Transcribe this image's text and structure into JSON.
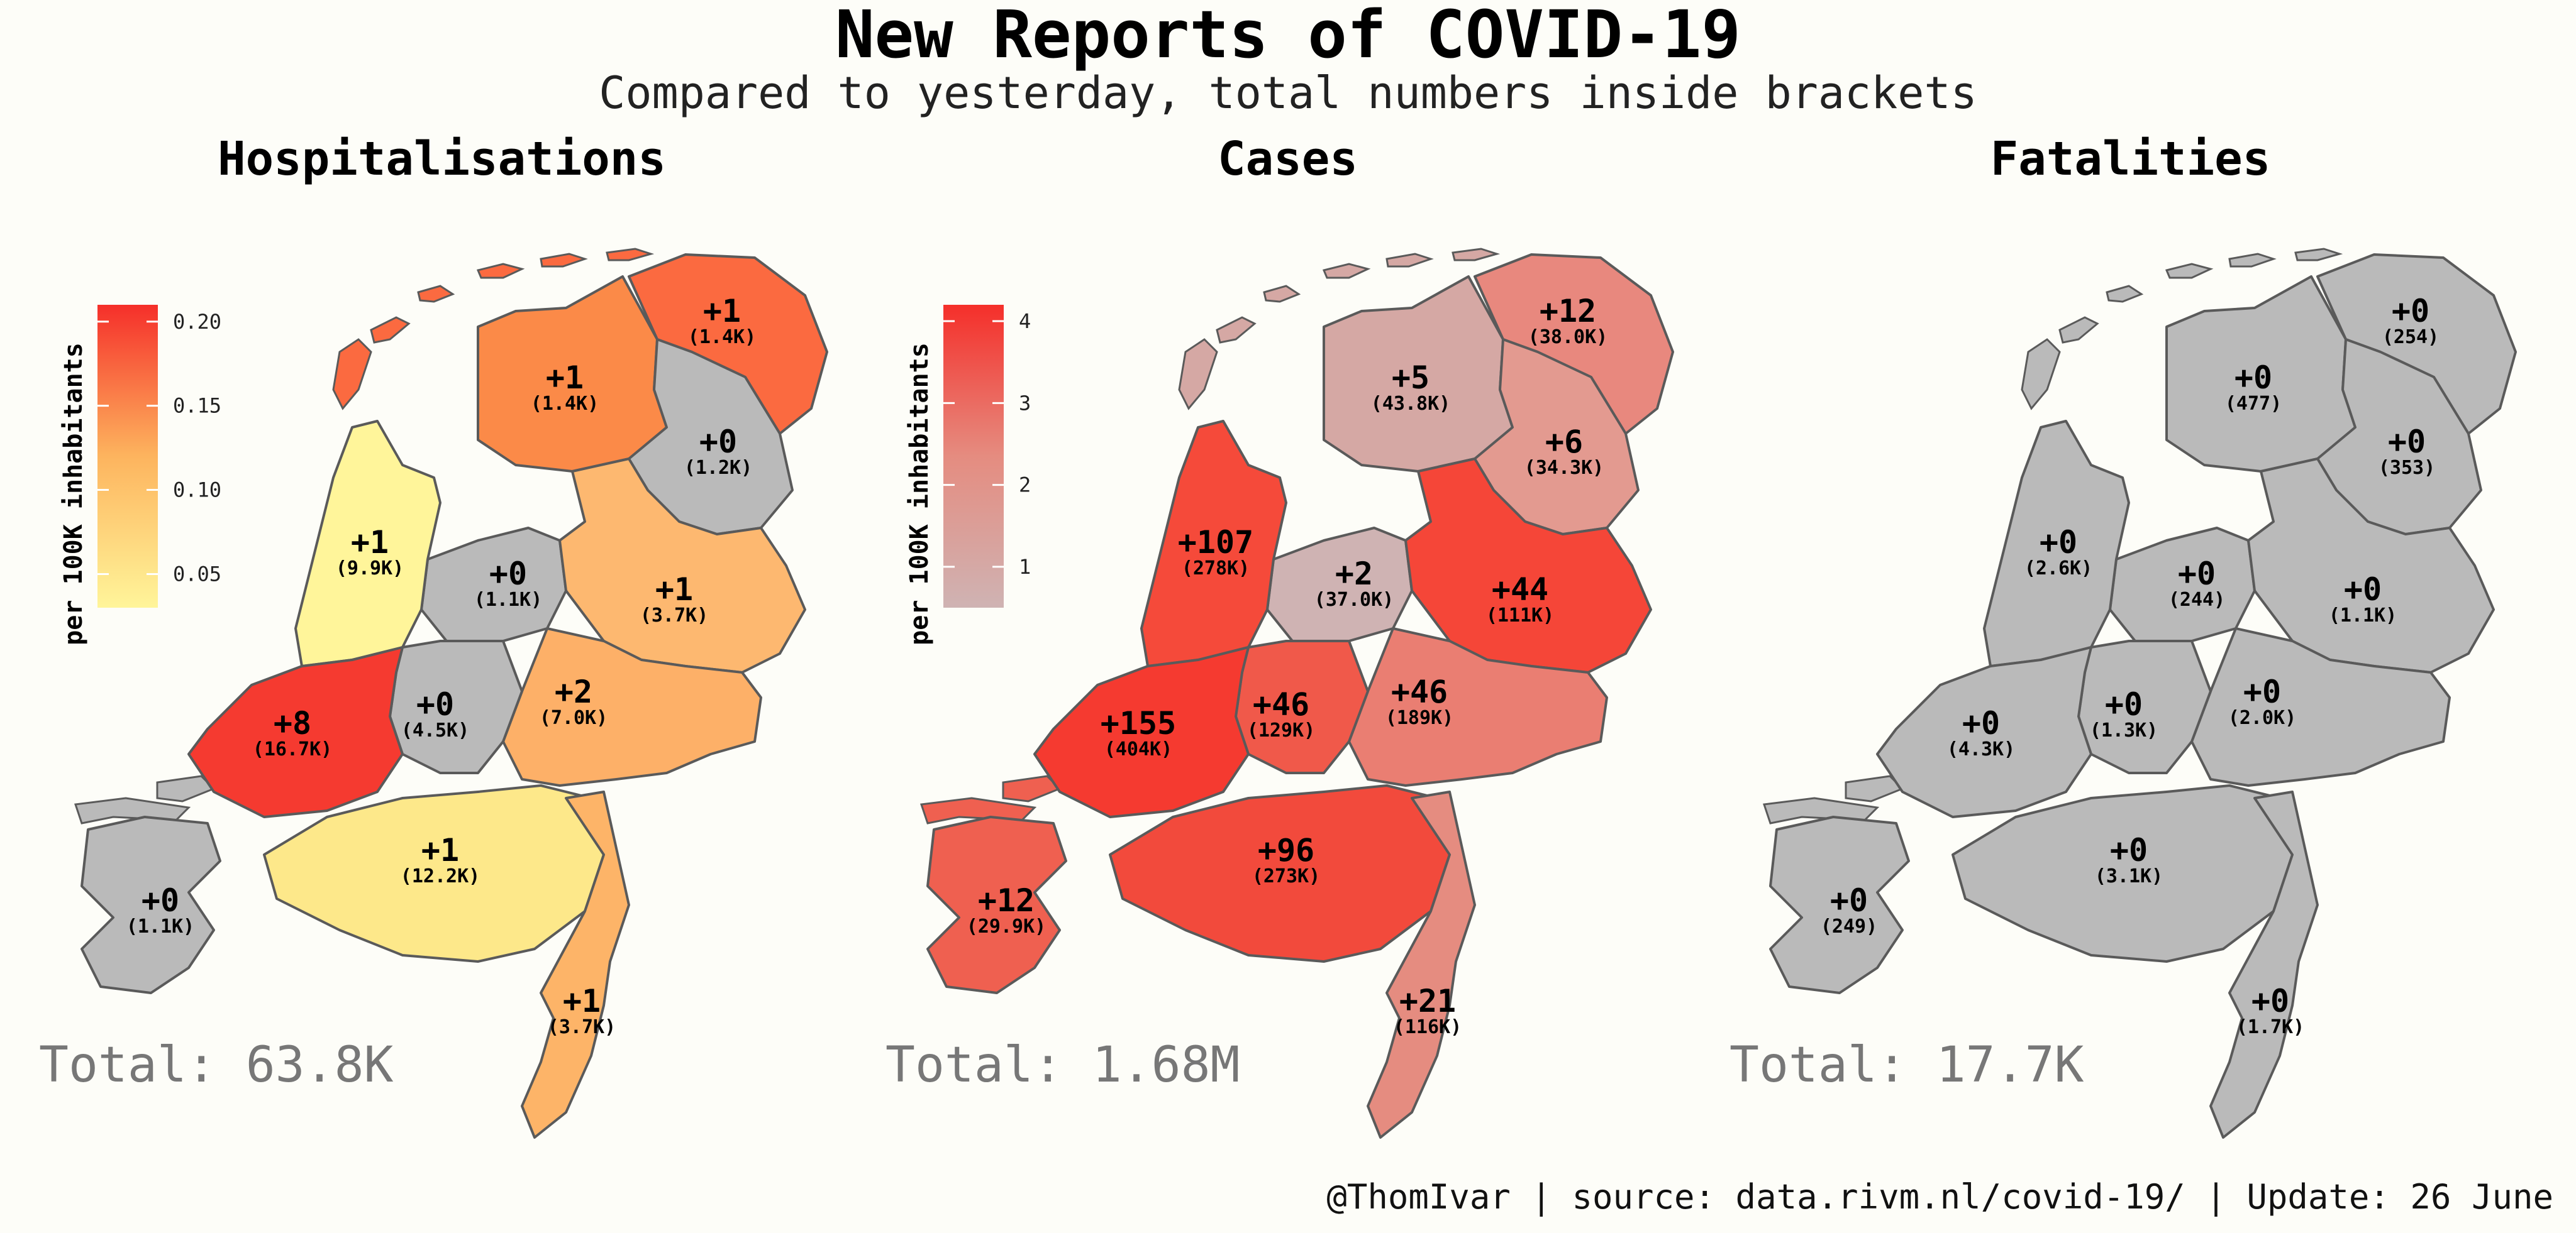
{
  "header": {
    "title": "New Reports of COVID-19",
    "subtitle": "Compared to yesterday, total numbers inside brackets"
  },
  "footer": {
    "text": "@ThomIvar | source: data.rivm.nl/covid-19/ | Update: 26 June"
  },
  "colors": {
    "no_new": "#bababa",
    "border": "#5a5a5a",
    "scale_low": "#fff59a",
    "scale_mid": "#fdb45e",
    "scale_high": "#f52f2a",
    "cases_low": "#cfb3b3",
    "cases_high": "#f52f2a"
  },
  "panels": [
    {
      "id": "hospitalisations",
      "title": "Hospitalisations",
      "total": "Total: 63.8K",
      "legend": {
        "title": "per 100K inhabitants",
        "ticks": [
          "0.20",
          "0.15",
          "0.10",
          "0.05"
        ],
        "tick_values": [
          0.2,
          0.15,
          0.1,
          0.05
        ],
        "range": [
          0.03,
          0.21
        ],
        "gradient": [
          "#fff59a",
          "#fdb45e",
          "#f52f2a"
        ]
      },
      "regions": [
        {
          "day": "+1",
          "total": "(1.4K)",
          "color": "#fb6a40"
        },
        {
          "day": "+1",
          "total": "(1.4K)",
          "color": "#fb8a48"
        },
        {
          "day": "+0",
          "total": "(1.2K)",
          "color": "#bababa"
        },
        {
          "day": "+0",
          "total": "(1.1K)",
          "color": "#bababa"
        },
        {
          "day": "+1",
          "total": "(3.7K)",
          "color": "#fdb870"
        },
        {
          "day": "+1",
          "total": "(9.9K)",
          "color": "#fff59a"
        },
        {
          "day": "+2",
          "total": "(7.0K)",
          "color": "#fdb068"
        },
        {
          "day": "+0",
          "total": "(4.5K)",
          "color": "#bababa"
        },
        {
          "day": "+8",
          "total": "(16.7K)",
          "color": "#f53a30"
        },
        {
          "day": "+1",
          "total": "(12.2K)",
          "color": "#fde88a"
        },
        {
          "day": "+0",
          "total": "(1.1K)",
          "color": "#bababa"
        },
        {
          "day": "+1",
          "total": "(3.7K)",
          "color": "#fdb468"
        }
      ]
    },
    {
      "id": "cases",
      "title": "Cases",
      "total": "Total: 1.68M",
      "legend": {
        "title": "per 100K inhabitants",
        "ticks": [
          "4",
          "3",
          "2",
          "1"
        ],
        "tick_values": [
          4,
          3,
          2,
          1
        ],
        "range": [
          0.5,
          4.2
        ],
        "gradient": [
          "#cfb3b3",
          "#e58c80",
          "#f52f2a"
        ]
      },
      "regions": [
        {
          "day": "+12",
          "total": "(38.0K)",
          "color": "#e8887e"
        },
        {
          "day": "+5",
          "total": "(43.8K)",
          "color": "#d5a8a4"
        },
        {
          "day": "+6",
          "total": "(34.3K)",
          "color": "#e39a90"
        },
        {
          "day": "+2",
          "total": "(37.0K)",
          "color": "#cfb3b3"
        },
        {
          "day": "+44",
          "total": "(111K)",
          "color": "#f54638"
        },
        {
          "day": "+107",
          "total": "(278K)",
          "color": "#f54a3a"
        },
        {
          "day": "+46",
          "total": "(189K)",
          "color": "#ea7e72"
        },
        {
          "day": "+46",
          "total": "(129K)",
          "color": "#f0594a"
        },
        {
          "day": "+155",
          "total": "(404K)",
          "color": "#f53a30"
        },
        {
          "day": "+96",
          "total": "(273K)",
          "color": "#f24a3c"
        },
        {
          "day": "+12",
          "total": "(29.9K)",
          "color": "#ef6050"
        },
        {
          "day": "+21",
          "total": "(116K)",
          "color": "#e58c80"
        }
      ]
    },
    {
      "id": "fatalities",
      "title": "Fatalities",
      "total": "Total: 17.7K",
      "regions": [
        {
          "day": "+0",
          "total": "(254)",
          "color": "#bababa"
        },
        {
          "day": "+0",
          "total": "(477)",
          "color": "#bababa"
        },
        {
          "day": "+0",
          "total": "(353)",
          "color": "#bababa"
        },
        {
          "day": "+0",
          "total": "(244)",
          "color": "#bababa"
        },
        {
          "day": "+0",
          "total": "(1.1K)",
          "color": "#bababa"
        },
        {
          "day": "+0",
          "total": "(2.6K)",
          "color": "#bababa"
        },
        {
          "day": "+0",
          "total": "(2.0K)",
          "color": "#bababa"
        },
        {
          "day": "+0",
          "total": "(1.3K)",
          "color": "#bababa"
        },
        {
          "day": "+0",
          "total": "(4.3K)",
          "color": "#bababa"
        },
        {
          "day": "+0",
          "total": "(3.1K)",
          "color": "#bababa"
        },
        {
          "day": "+0",
          "total": "(249)",
          "color": "#bababa"
        },
        {
          "day": "+0",
          "total": "(1.7K)",
          "color": "#bababa"
        }
      ]
    }
  ]
}
